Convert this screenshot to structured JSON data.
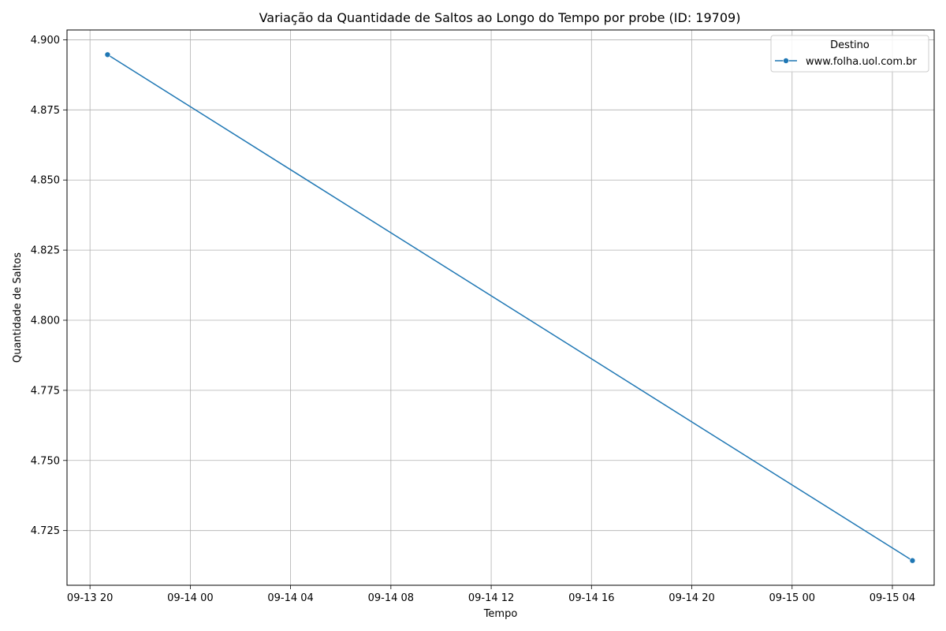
{
  "chart_data": {
    "type": "line",
    "title": "Variação da Quantidade de Saltos ao Longo do Tempo por probe (ID: 19709)",
    "xlabel": "Tempo",
    "ylabel": "Quantidade de Saltos",
    "x_ticks": [
      "09-13 20",
      "09-14 00",
      "09-14 04",
      "09-14 08",
      "09-14 12",
      "09-14 16",
      "09-14 20",
      "09-15 00",
      "09-15 04"
    ],
    "y_ticks": [
      "4.725",
      "4.750",
      "4.775",
      "4.800",
      "4.825",
      "4.850",
      "4.875",
      "4.900"
    ],
    "xlim": [
      "2024-09-13T19:05",
      "2024-09-15T05:40"
    ],
    "ylim": [
      4.7055,
      4.9035
    ],
    "grid": true,
    "legend": {
      "title": "Destino",
      "position": "top-right"
    },
    "series": [
      {
        "name": "www.folha.uol.com.br",
        "color": "#1f77b4",
        "marker": "circle",
        "points": [
          {
            "x": "2024-09-13T20:42",
            "y": 4.8947
          },
          {
            "x": "2024-09-15T04:48",
            "y": 4.7143
          }
        ]
      }
    ]
  }
}
